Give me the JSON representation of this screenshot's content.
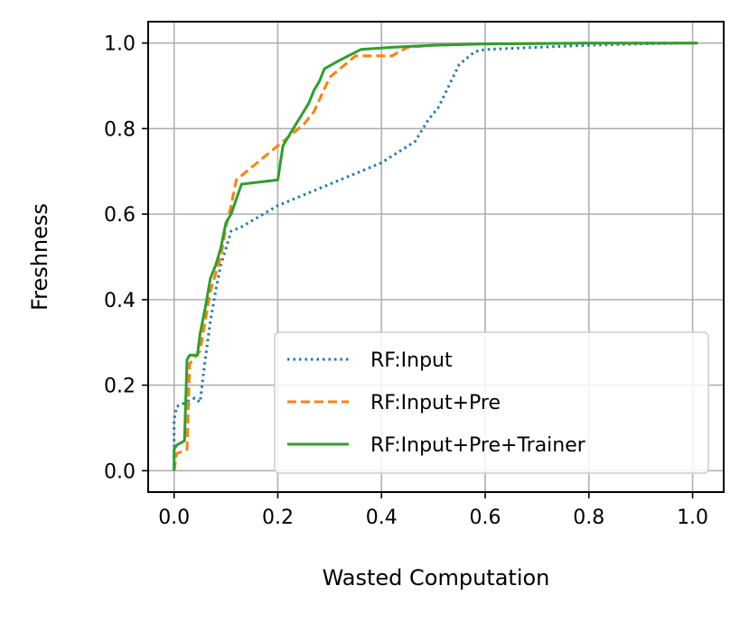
{
  "chart_data": {
    "type": "line",
    "title": "",
    "xlabel": "Wasted Computation",
    "ylabel": "Freshness",
    "xlim": [
      -0.05,
      1.06
    ],
    "ylim": [
      -0.05,
      1.05
    ],
    "xticks": [
      0.0,
      0.2,
      0.4,
      0.6,
      0.8,
      1.0
    ],
    "xtick_labels": [
      "0.0",
      "0.2",
      "0.4",
      "0.6",
      "0.8",
      "1.0"
    ],
    "yticks": [
      0.0,
      0.2,
      0.4,
      0.6,
      0.8,
      1.0
    ],
    "ytick_labels": [
      "0.0",
      "0.2",
      "0.4",
      "0.6",
      "0.8",
      "1.0"
    ],
    "grid": true,
    "legend_position": "lower-right",
    "series": [
      {
        "name": "RF:Input",
        "color": "#1f77b4",
        "dash": "dotted",
        "x": [
          0.0,
          0.0,
          0.005,
          0.04,
          0.05,
          0.06,
          0.07,
          0.08,
          0.09,
          0.1,
          0.11,
          0.13,
          0.2,
          0.3,
          0.4,
          0.465,
          0.49,
          0.51,
          0.53,
          0.55,
          0.58,
          0.6,
          0.7,
          0.8,
          0.9,
          1.0,
          1.01
        ],
        "y": [
          0.0,
          0.12,
          0.15,
          0.17,
          0.16,
          0.26,
          0.35,
          0.42,
          0.48,
          0.52,
          0.56,
          0.57,
          0.62,
          0.67,
          0.72,
          0.77,
          0.82,
          0.85,
          0.9,
          0.95,
          0.98,
          0.985,
          0.99,
          0.995,
          0.998,
          1.0,
          1.0
        ]
      },
      {
        "name": "RF:Input+Pre",
        "color": "#ff7f0e",
        "dash": "dashed",
        "x": [
          0.0,
          0.005,
          0.025,
          0.03,
          0.05,
          0.07,
          0.09,
          0.1,
          0.11,
          0.12,
          0.2,
          0.25,
          0.27,
          0.3,
          0.35,
          0.42,
          0.45,
          0.5,
          0.6,
          0.8,
          1.0,
          1.01
        ],
        "y": [
          0.0,
          0.04,
          0.05,
          0.25,
          0.28,
          0.42,
          0.5,
          0.57,
          0.62,
          0.68,
          0.76,
          0.81,
          0.84,
          0.92,
          0.97,
          0.97,
          0.99,
          0.995,
          0.998,
          1.0,
          1.0,
          1.0
        ],
        "interp": "linear"
      },
      {
        "name": "RF:Input+Pre+Trainer",
        "color": "#2ca02c",
        "dash": "solid",
        "x": [
          0.0,
          0.0,
          0.005,
          0.02,
          0.025,
          0.03,
          0.045,
          0.05,
          0.06,
          0.07,
          0.08,
          0.09,
          0.1,
          0.11,
          0.13,
          0.2,
          0.21,
          0.22,
          0.24,
          0.26,
          0.27,
          0.28,
          0.29,
          0.32,
          0.36,
          0.42,
          0.5,
          0.6,
          0.7,
          0.8,
          0.9,
          1.01
        ],
        "y": [
          0.0,
          0.05,
          0.06,
          0.07,
          0.26,
          0.27,
          0.27,
          0.32,
          0.38,
          0.45,
          0.48,
          0.52,
          0.58,
          0.6,
          0.67,
          0.68,
          0.76,
          0.78,
          0.82,
          0.86,
          0.89,
          0.91,
          0.94,
          0.96,
          0.985,
          0.99,
          0.995,
          0.998,
          0.999,
          1.0,
          1.0,
          1.0
        ]
      }
    ]
  }
}
